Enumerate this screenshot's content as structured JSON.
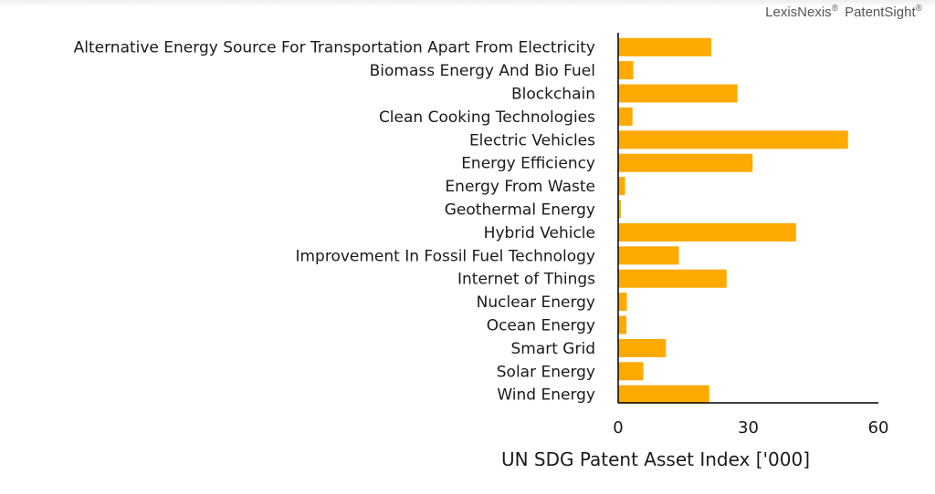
{
  "brand": {
    "name1": "LexisNexis",
    "name2": "PatentSight",
    "reg": "®"
  },
  "colors": {
    "bar": "#FFAA00",
    "axis": "#000000",
    "text": "#1a1a1a"
  },
  "chart_data": {
    "type": "bar",
    "orientation": "horizontal",
    "title": "",
    "xlabel": "UN SDG Patent Asset Index ['000]",
    "ylabel": "",
    "xlim": [
      0,
      60
    ],
    "xticks": [
      0,
      30,
      60
    ],
    "grid": false,
    "categories": [
      "Alternative Energy Source For Transportation Apart From Electricity",
      "Biomass Energy And Bio Fuel",
      "Blockchain",
      "Clean Cooking Technologies",
      "Electric Vehicles",
      "Energy Efficiency",
      "Energy From Waste",
      "Geothermal Energy",
      "Hybrid Vehicle",
      "Improvement In Fossil Fuel Technology",
      "Internet of Things",
      "Nuclear Energy",
      "Ocean Energy",
      "Smart Grid",
      "Solar Energy",
      "Wind Energy"
    ],
    "values": [
      21.5,
      3.5,
      27.5,
      3.3,
      53,
      31,
      1.6,
      0.6,
      41,
      14,
      25,
      2,
      1.9,
      11,
      5.8,
      21
    ]
  }
}
